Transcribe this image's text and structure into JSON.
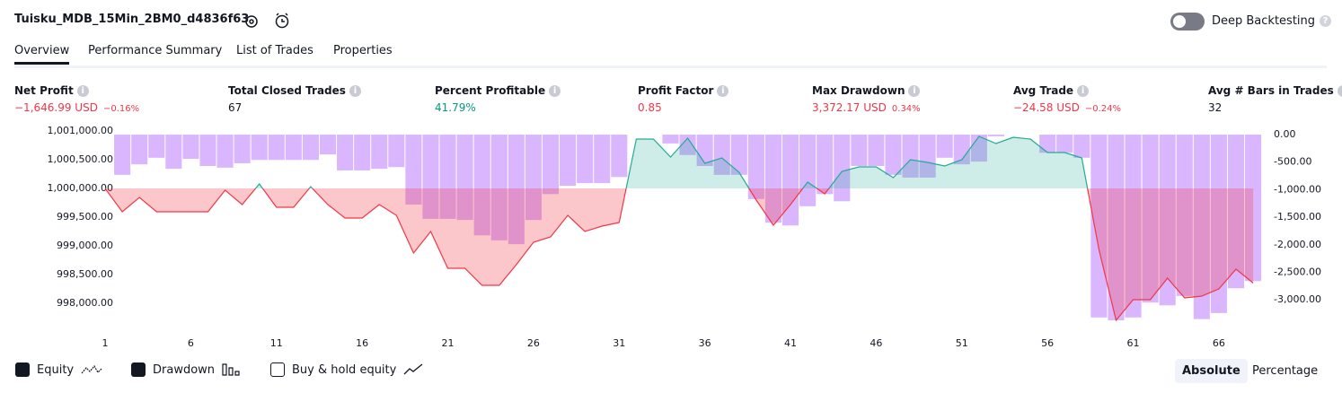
{
  "header": {
    "title": "Tuisku_MDB_15Min_2BM0_d4836f63",
    "toggle_label": "Deep Backtesting"
  },
  "tabs": [
    "Overview",
    "Performance Summary",
    "List of Trades",
    "Properties"
  ],
  "metrics": [
    {
      "label": "Net Profit",
      "value": "−1,646.99 USD",
      "percent": "−0.16%",
      "color": "#f23645"
    },
    {
      "label": "Total Closed Trades",
      "value": "67",
      "color": "#131722"
    },
    {
      "label": "Percent Profitable",
      "value": "41.79%",
      "color": "#089981"
    },
    {
      "label": "Profit Factor",
      "value": "0.85",
      "color": "#f23645"
    },
    {
      "label": "Max Drawdown",
      "value": "3,372.17 USD",
      "percent": "0.34%",
      "color": "#f23645"
    },
    {
      "label": "Avg Trade",
      "value": "−24.58 USD",
      "percent": "−0.24%",
      "color": "#f23645"
    },
    {
      "label": "Avg # Bars in Trades",
      "value": "32",
      "color": "#131722"
    }
  ],
  "chart_data": {
    "type": "combo",
    "x": [
      1,
      2,
      3,
      4,
      5,
      6,
      7,
      8,
      9,
      10,
      11,
      12,
      13,
      14,
      15,
      16,
      17,
      18,
      19,
      20,
      21,
      22,
      23,
      24,
      25,
      26,
      27,
      28,
      29,
      30,
      31,
      32,
      33,
      34,
      35,
      36,
      37,
      38,
      39,
      40,
      41,
      42,
      43,
      44,
      45,
      46,
      47,
      48,
      49,
      50,
      51,
      52,
      53,
      54,
      55,
      56,
      57,
      58,
      59,
      60,
      61,
      62,
      63,
      64,
      65,
      66,
      67,
      68
    ],
    "xlim": [
      0.5,
      68.5
    ],
    "xticks": [
      1,
      6,
      11,
      16,
      21,
      26,
      31,
      36,
      41,
      46,
      51,
      56,
      61,
      66
    ],
    "ylim": [
      997600,
      1001100
    ],
    "yticks": [
      {
        "value": 998000,
        "label": "998,000.00"
      },
      {
        "value": 998500,
        "label": "998,500.00"
      },
      {
        "value": 999000,
        "label": "999,000.00"
      },
      {
        "value": 999500,
        "label": "999,500.00"
      },
      {
        "value": 1000000,
        "label": "1,000,000.00"
      },
      {
        "value": 1000500,
        "label": "1,000,500.00"
      },
      {
        "value": 1001000,
        "label": "1,001,000.00"
      }
    ],
    "y2lim": [
      -3480,
      170
    ],
    "y2ticks": [
      {
        "value": 0,
        "label": "0.00"
      },
      {
        "value": -500,
        "label": "-500.00"
      },
      {
        "value": -1000,
        "label": "-1,000.00"
      },
      {
        "value": -1500,
        "label": "-1,500.00"
      },
      {
        "value": -2000,
        "label": "-2,000.00"
      },
      {
        "value": -2500,
        "label": "-2,500.00"
      },
      {
        "value": -3000,
        "label": "-3,000.00"
      }
    ],
    "series": [
      {
        "name": "Equity",
        "type": "line",
        "color": "#22ab94",
        "negative_color": "#f23645",
        "values": [
          1000000,
          999594,
          999844,
          999594,
          999594,
          999594,
          999594,
          999969,
          999719,
          1000078,
          999672,
          999672,
          1000031,
          999719,
          999484,
          999484,
          999719,
          999531,
          998875,
          999250,
          998609,
          998609,
          998313,
          998313,
          998672,
          999063,
          999156,
          999531,
          999250,
          999344,
          999406,
          1000859,
          1000859,
          1000547,
          1000875,
          1000438,
          1000531,
          1000281,
          999797,
          999359,
          999719,
          1000109,
          999906,
          1000297,
          1000375,
          1000375,
          1000188,
          1000500,
          1000453,
          1000391,
          1000500,
          1000906,
          1000781,
          1000891,
          1000859,
          1000625,
          1000625,
          1000531,
          998938,
          997703,
          998063,
          998063,
          998438,
          998094,
          998125,
          998250,
          998594,
          998353
        ]
      },
      {
        "name": "Drawdown",
        "type": "bar",
        "axis": "y2",
        "color": "#d9b6fd",
        "values": [
          0,
          -730,
          -540,
          -420,
          -620,
          -440,
          -570,
          -600,
          -520,
          -460,
          -460,
          -460,
          -460,
          -360,
          -650,
          -650,
          -620,
          -590,
          -1270,
          -1530,
          -1530,
          -1550,
          -1830,
          -1920,
          -1990,
          -1550,
          -1080,
          -930,
          -880,
          -880,
          -770,
          0,
          0,
          -160,
          -370,
          -570,
          -730,
          -730,
          -1170,
          -1600,
          -1650,
          -1300,
          -1080,
          -1210,
          -570,
          -570,
          -730,
          -780,
          -780,
          -420,
          -540,
          -490,
          -30,
          0,
          0,
          -330,
          -330,
          -420,
          -3320,
          -3372,
          -3320,
          -3050,
          -3100,
          -2930,
          -3350,
          -3240,
          -2790,
          -2660
        ]
      }
    ]
  },
  "controls": {
    "buy_hold": "Buy & hold equity",
    "modes": [
      "Absolute",
      "Percentage"
    ]
  }
}
